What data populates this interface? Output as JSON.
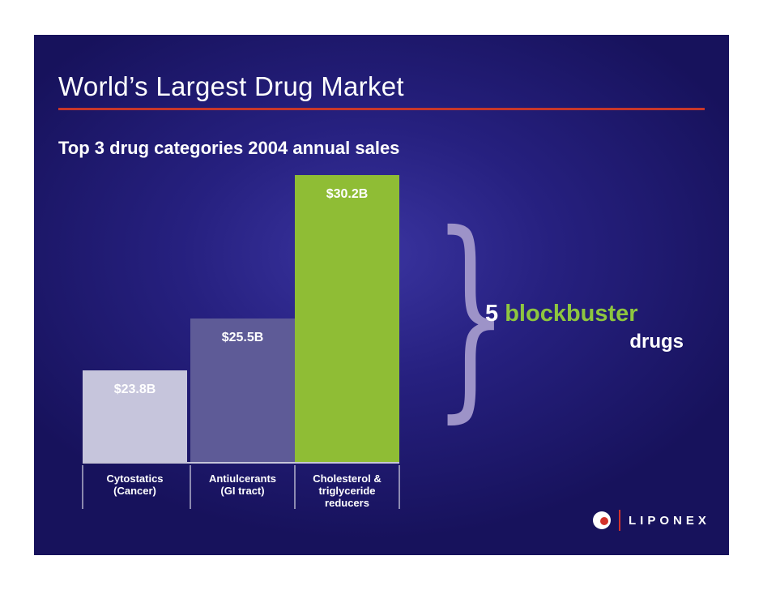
{
  "slide": {
    "title": "World’s Largest Drug Market",
    "subtitle": "Top 3 drug categories 2004 annual sales",
    "callout": {
      "number": "5",
      "highlight": "blockbuster",
      "rest": "drugs"
    },
    "logo_text": "LIPONEX"
  },
  "colors": {
    "accent_rule": "#c8372a",
    "highlight": "#8ec63f"
  },
  "chart_data": {
    "type": "bar",
    "categories": [
      [
        "Cytostatics",
        "(Cancer)"
      ],
      [
        "Antiulcerants",
        "(GI tract)"
      ],
      [
        "Cholesterol &",
        "triglyceride",
        "reducers"
      ]
    ],
    "values": [
      23.8,
      25.5,
      30.2
    ],
    "value_labels": [
      "$23.8B",
      "$25.5B",
      "$30.2B"
    ],
    "bar_colors": [
      "#c6c5dc",
      "#5e5b97",
      "#8fbd35"
    ],
    "ylim": [
      20.8,
      30.2
    ],
    "grid": false,
    "legend": "none"
  }
}
